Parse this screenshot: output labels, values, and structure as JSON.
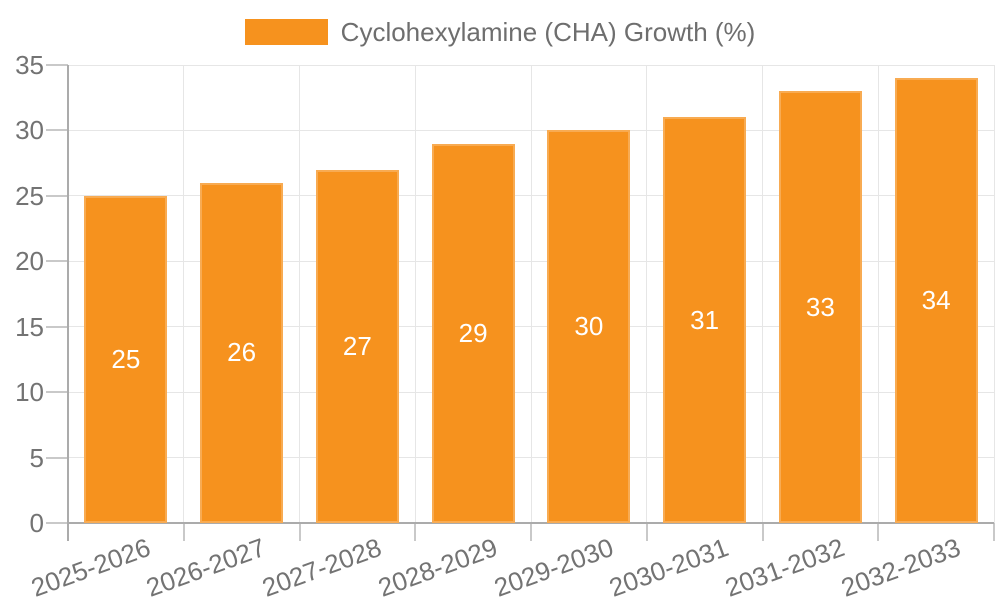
{
  "legend": {
    "label": "Cyclohexylamine (CHA) Growth (%)"
  },
  "colors": {
    "bar": "#F6921E",
    "bar_border": "#F8AB52",
    "bar_label": "#FFFFFF",
    "grid": "#E6E6E6",
    "axis": "#ABABAB",
    "tick_mark": "#C9C9C9",
    "tick_text": "#737373",
    "legend_text": "#6E6E6E"
  },
  "chart_data": {
    "type": "bar",
    "title": "",
    "xlabel": "",
    "ylabel": "",
    "categories": [
      "2025-2026",
      "2026-2027",
      "2027-2028",
      "2028-2029",
      "2029-2030",
      "2030-2031",
      "2031-2032",
      "2032-2033"
    ],
    "series": [
      {
        "name": "Cyclohexylamine (CHA) Growth (%)",
        "values": [
          25,
          26,
          27,
          29,
          30,
          31,
          33,
          34
        ]
      }
    ],
    "bar_labels": [
      "25",
      "26",
      "27",
      "29",
      "30",
      "31",
      "33",
      "34"
    ],
    "y_tick_labels": [
      "0",
      "5",
      "10",
      "15",
      "20",
      "25",
      "30",
      "35"
    ],
    "ylim": [
      0,
      35
    ],
    "ytick_step": 5,
    "grid": true,
    "legend_position": "top-center",
    "bar_label_position": "inside-center",
    "x_label_rotation_deg": -20
  }
}
